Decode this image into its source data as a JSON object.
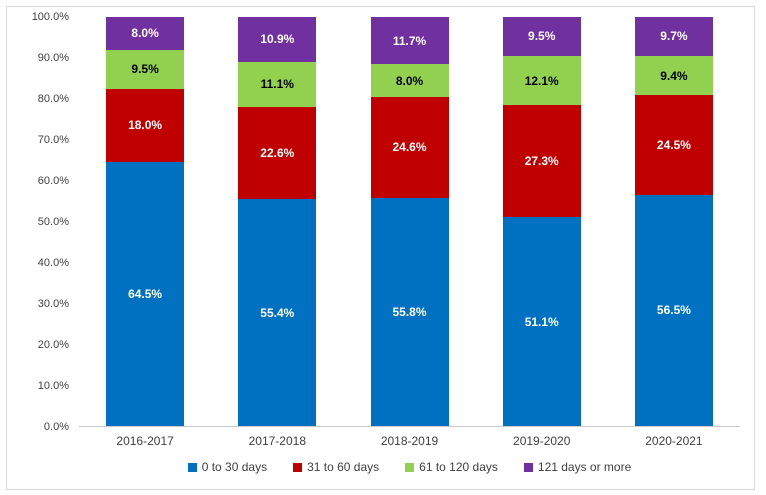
{
  "chart_data": {
    "type": "bar",
    "stacked": true,
    "title": "",
    "xlabel": "",
    "ylabel": "",
    "categories": [
      "2016-2017",
      "2017-2018",
      "2018-2019",
      "2019-2020",
      "2020-2021"
    ],
    "series": [
      {
        "name": "0 to 30 days",
        "color": "#0070C0",
        "label_color": "#ffffff",
        "values": [
          64.5,
          55.4,
          55.8,
          51.1,
          56.5
        ]
      },
      {
        "name": "31 to 60 days",
        "color": "#C00000",
        "label_color": "#ffffff",
        "values": [
          18.0,
          22.6,
          24.6,
          27.3,
          24.5
        ]
      },
      {
        "name": "61 to 120 days",
        "color": "#92D050",
        "label_color": "#000000",
        "values": [
          9.5,
          11.1,
          8.0,
          12.1,
          9.4
        ]
      },
      {
        "name": "121 days or more",
        "color": "#7030A0",
        "label_color": "#ffffff",
        "values": [
          8.0,
          10.9,
          11.7,
          9.5,
          9.7
        ]
      }
    ],
    "data_label_format": "one_decimal_percent",
    "y_ticks": [
      "100.0%",
      "90.0%",
      "80.0%",
      "70.0%",
      "60.0%",
      "50.0%",
      "40.0%",
      "30.0%",
      "20.0%",
      "10.0%",
      "0.0%"
    ],
    "ylim": [
      0,
      100
    ],
    "grid": false,
    "legend_position": "bottom",
    "axis_text_color": "#404040",
    "frame_border_color": "#d9d9d9"
  }
}
